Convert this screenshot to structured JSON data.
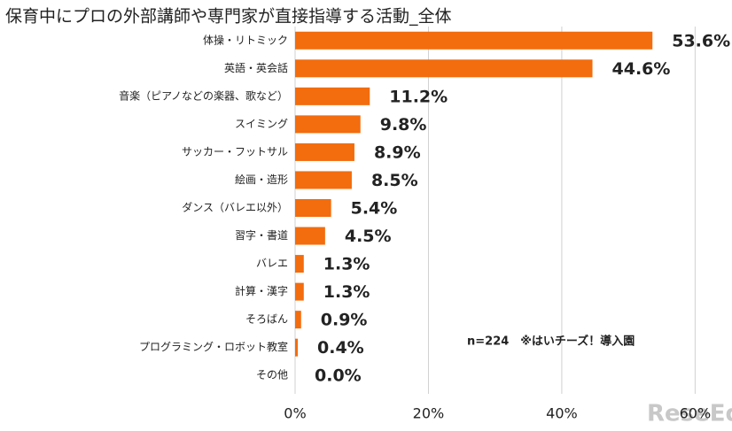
{
  "chart_data": {
    "type": "hbar",
    "title": "保育中にプロの外部講師や専門家が直接指導する活動_全体",
    "categories": [
      "体操・リトミック",
      "英語・英会話",
      "音楽（ピアノなどの楽器、歌など）",
      "スイミング",
      "サッカー・フットサル",
      "絵画・造形",
      "ダンス（バレエ以外）",
      "習字・書道",
      "バレエ",
      "計算・漢字",
      "そろばん",
      "プログラミング・ロボット教室",
      "その他"
    ],
    "values": [
      53.6,
      44.6,
      11.2,
      9.8,
      8.9,
      8.5,
      5.4,
      4.5,
      1.3,
      1.3,
      0.9,
      0.4,
      0.0
    ],
    "value_labels": [
      "53.6%",
      "44.6%",
      "11.2%",
      "9.8%",
      "8.9%",
      "8.5%",
      "5.4%",
      "4.5%",
      "1.3%",
      "1.3%",
      "0.9%",
      "0.4%",
      "0.0%"
    ],
    "color": "#f36c0d",
    "xlim": [
      0,
      65
    ],
    "xticks": [
      {
        "value": 0,
        "label": "0%"
      },
      {
        "value": 20,
        "label": "20%"
      },
      {
        "value": 40,
        "label": "40%"
      },
      {
        "value": 60,
        "label": "60%"
      }
    ],
    "grid": true,
    "annotation": "n=224　※はいチーズ！導入園",
    "watermark": "ReseEd"
  }
}
